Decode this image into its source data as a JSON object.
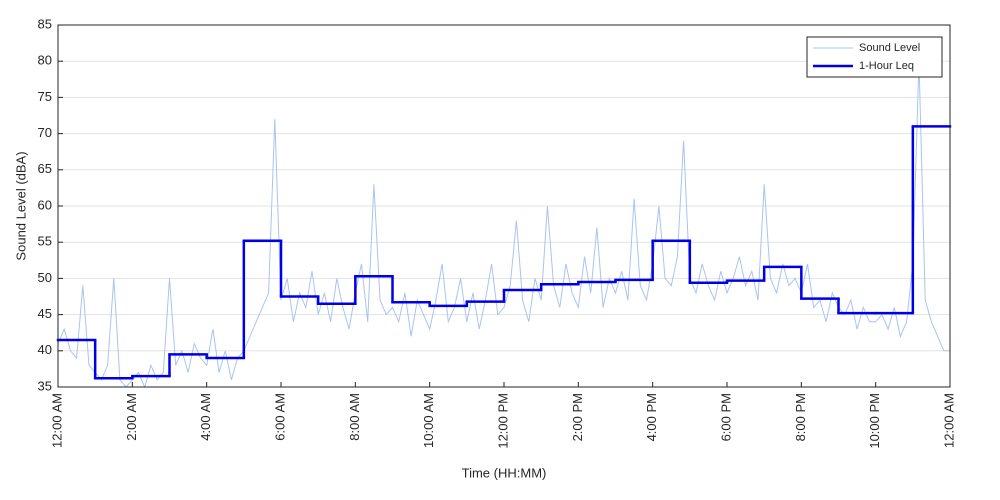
{
  "chart_data": {
    "type": "line",
    "y_label": "Sound Level (dBA)",
    "x_label": "Time (HH:MM)",
    "xlim": [
      0,
      1440
    ],
    "ylim": [
      35,
      85
    ],
    "yticks": [
      35,
      40,
      45,
      50,
      55,
      60,
      65,
      70,
      75,
      80,
      85
    ],
    "xticks": [
      {
        "value": 0,
        "label": "12:00 AM"
      },
      {
        "value": 120,
        "label": "2:00 AM"
      },
      {
        "value": 240,
        "label": "4:00 AM"
      },
      {
        "value": 360,
        "label": "6:00 AM"
      },
      {
        "value": 480,
        "label": "8:00 AM"
      },
      {
        "value": 600,
        "label": "10:00 AM"
      },
      {
        "value": 720,
        "label": "12:00 PM"
      },
      {
        "value": 840,
        "label": "2:00 PM"
      },
      {
        "value": 960,
        "label": "4:00 PM"
      },
      {
        "value": 1080,
        "label": "6:00 PM"
      },
      {
        "value": 1200,
        "label": "8:00 PM"
      },
      {
        "value": 1320,
        "label": "10:00 PM"
      },
      {
        "value": 1440,
        "label": "12:00 AM"
      }
    ],
    "grid": true,
    "legend": "upper right",
    "series": [
      {
        "name": "Sound Level",
        "color": "#a9c4f0",
        "style": "line",
        "x": [
          0,
          10,
          20,
          30,
          40,
          50,
          60,
          70,
          80,
          90,
          100,
          110,
          120,
          130,
          140,
          150,
          160,
          170,
          180,
          190,
          200,
          210,
          220,
          230,
          240,
          250,
          260,
          270,
          280,
          290,
          300,
          310,
          320,
          330,
          340,
          350,
          360,
          370,
          380,
          390,
          400,
          410,
          420,
          430,
          440,
          450,
          460,
          470,
          480,
          490,
          500,
          510,
          520,
          530,
          540,
          550,
          560,
          570,
          580,
          590,
          600,
          610,
          620,
          630,
          640,
          650,
          660,
          670,
          680,
          690,
          700,
          710,
          720,
          730,
          740,
          750,
          760,
          770,
          780,
          790,
          800,
          810,
          820,
          830,
          840,
          850,
          860,
          870,
          880,
          890,
          900,
          910,
          920,
          930,
          940,
          950,
          960,
          970,
          980,
          990,
          1000,
          1010,
          1020,
          1030,
          1040,
          1050,
          1060,
          1070,
          1080,
          1090,
          1100,
          1110,
          1120,
          1130,
          1140,
          1150,
          1160,
          1170,
          1180,
          1190,
          1200,
          1210,
          1220,
          1230,
          1240,
          1250,
          1260,
          1270,
          1280,
          1290,
          1300,
          1310,
          1320,
          1330,
          1340,
          1350,
          1360,
          1370,
          1380,
          1390,
          1400,
          1410,
          1420,
          1430,
          1440
        ],
        "values": [
          41,
          43,
          40,
          39,
          49,
          38,
          37,
          36,
          38,
          50,
          36,
          35,
          36,
          37,
          35,
          38,
          36,
          37,
          50,
          38,
          40,
          37,
          41,
          39,
          38,
          43,
          37,
          40,
          36,
          39,
          40,
          42,
          44,
          46,
          48,
          72,
          47,
          50,
          44,
          48,
          46,
          51,
          45,
          48,
          44,
          50,
          46,
          43,
          48,
          52,
          44,
          63,
          47,
          45,
          46,
          44,
          48,
          42,
          47,
          45,
          43,
          47,
          52,
          44,
          46,
          50,
          44,
          48,
          43,
          47,
          52,
          45,
          46,
          49,
          58,
          47,
          44,
          50,
          47,
          60,
          49,
          46,
          52,
          48,
          46,
          53,
          48,
          57,
          46,
          50,
          48,
          51,
          47,
          61,
          49,
          47,
          52,
          60,
          50,
          49,
          53,
          69,
          50,
          48,
          52,
          49,
          47,
          51,
          48,
          50,
          53,
          49,
          51,
          47,
          63,
          50,
          48,
          52,
          49,
          50,
          48,
          52,
          46,
          47,
          44,
          48,
          46,
          45,
          47,
          43,
          46,
          44,
          44,
          45,
          43,
          46,
          42,
          44,
          52,
          80,
          47,
          44,
          42,
          40,
          40
        ]
      },
      {
        "name": "1-Hour Leq",
        "color": "#0000e6",
        "style": "step",
        "x": [
          0,
          60,
          120,
          180,
          240,
          300,
          360,
          420,
          480,
          540,
          600,
          660,
          720,
          780,
          840,
          900,
          960,
          1020,
          1080,
          1140,
          1200,
          1260,
          1320,
          1380
        ],
        "values": [
          41.5,
          36.2,
          36.5,
          39.5,
          39,
          55.2,
          47.5,
          46.5,
          50.3,
          46.7,
          46.2,
          46.8,
          48.4,
          49.2,
          49.5,
          49.8,
          55.2,
          49.4,
          49.7,
          51.6,
          47.2,
          45.2,
          45.2,
          71
        ]
      }
    ]
  }
}
